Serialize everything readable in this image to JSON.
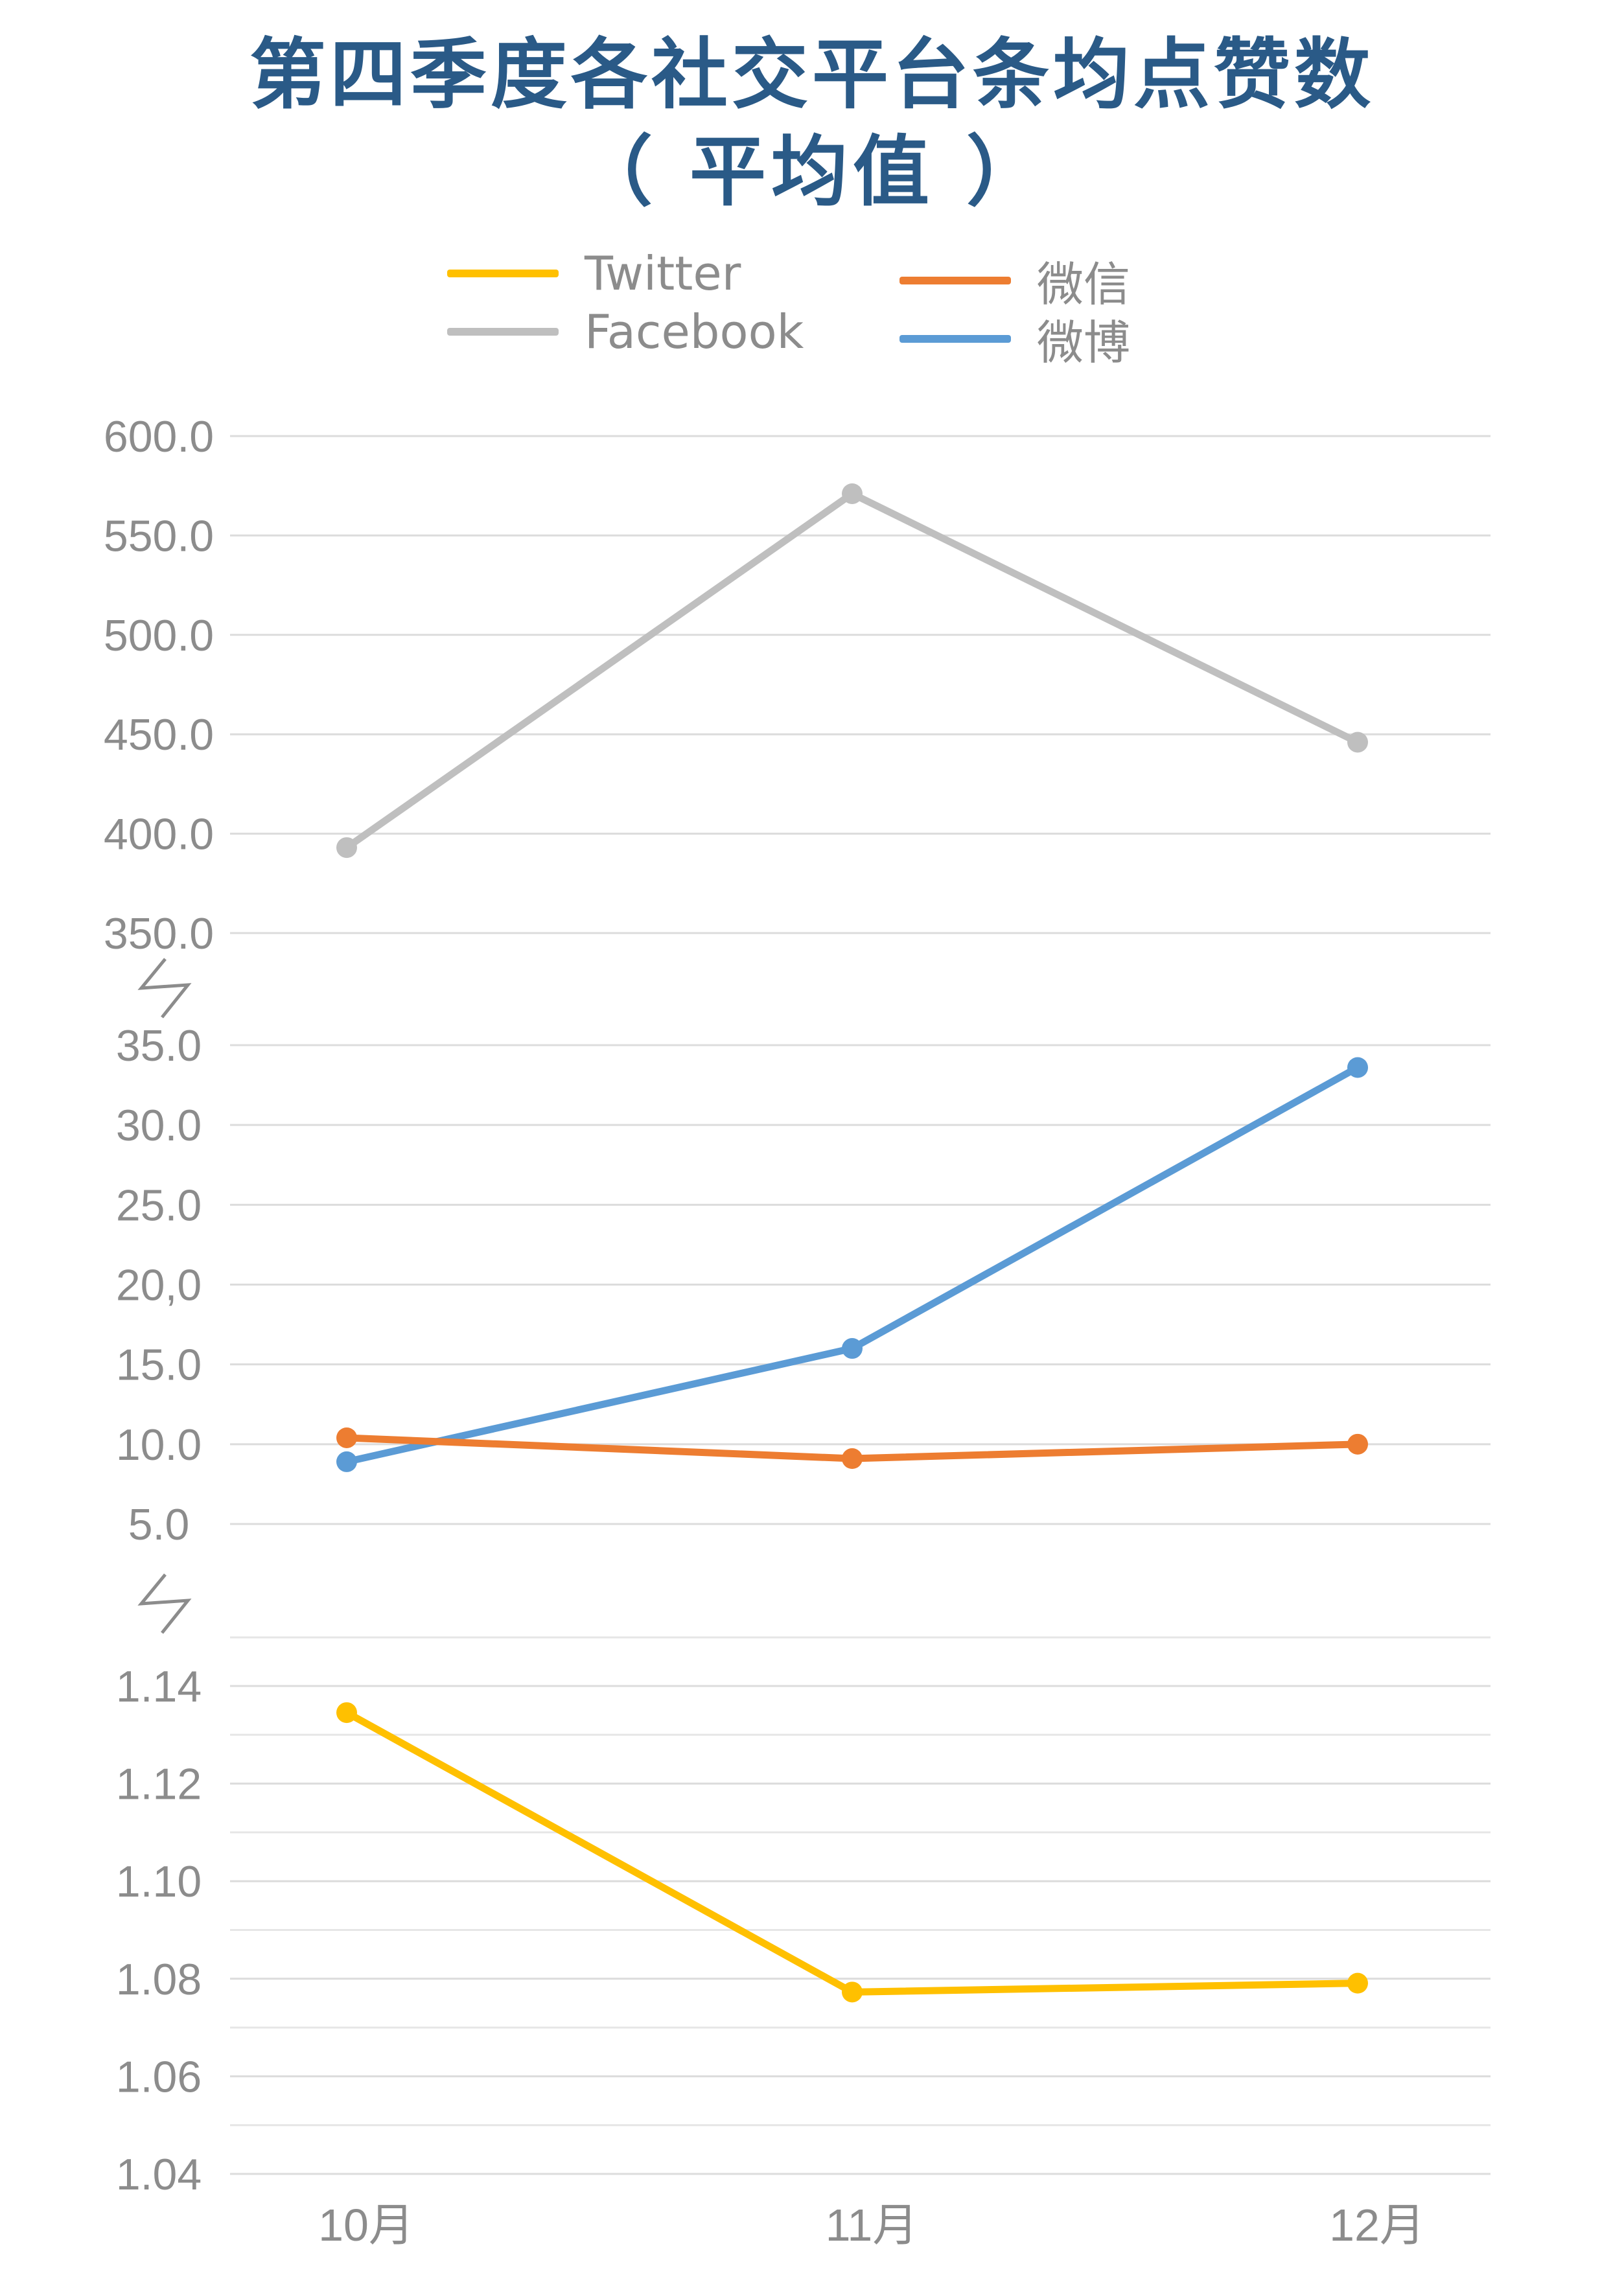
{
  "title_line1": "第四季度各社交平台条均点赞数",
  "title_line2": "（ 平均值 ）",
  "legend": [
    {
      "label": "Twitter",
      "color": "#FFC000"
    },
    {
      "label": "微信",
      "color": "#ED7D31"
    },
    {
      "label": "Facebook",
      "color": "#BFBFBF"
    },
    {
      "label": "微博",
      "color": "#5B9BD5"
    }
  ],
  "chart_data": {
    "type": "line",
    "title": "第四季度各社交平台条均点赞数（ 平均值 ）",
    "categories": [
      "10月",
      "11月",
      "12月"
    ],
    "axis_break": true,
    "segments": [
      {
        "range": [
          350,
          600
        ],
        "ticks": [
          "600.0",
          "550.0",
          "500.0",
          "450.0",
          "400.0",
          "350.0"
        ]
      },
      {
        "range": [
          5,
          35
        ],
        "ticks": [
          "35.0",
          "30.0",
          "25.0",
          "20,0",
          "15.0",
          "10.0",
          "5.0"
        ]
      },
      {
        "range": [
          1.04,
          1.15
        ],
        "ticks": [
          "1.14",
          "1.12",
          "1.10",
          "1.08",
          "1.06",
          "1.04"
        ]
      }
    ],
    "series": [
      {
        "name": "Facebook",
        "color": "#BFBFBF",
        "segment": 0,
        "values": [
          393,
          571,
          446
        ]
      },
      {
        "name": "微博",
        "color": "#5B9BD5",
        "segment": 1,
        "values": [
          8.9,
          16.0,
          33.6
        ]
      },
      {
        "name": "微信",
        "color": "#ED7D31",
        "segment": 1,
        "values": [
          10.4,
          9.1,
          10.0
        ]
      },
      {
        "name": "Twitter",
        "color": "#FFC000",
        "segment": 2,
        "values": [
          1.144,
          1.081,
          1.083
        ]
      }
    ]
  }
}
